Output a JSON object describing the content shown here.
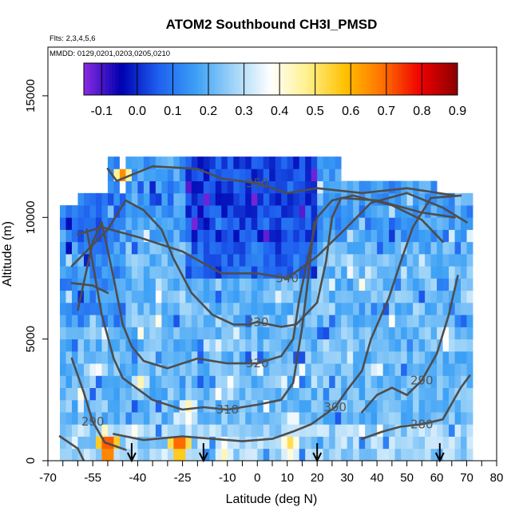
{
  "chart_data": {
    "type": "heatmap",
    "title": "ATOM2 Southbound CH3I_PMSD",
    "subtitle_flights": "Flts: 2,3,4,5,6",
    "subtitle_dates": "MMDD: 0129,0201,0203,0205,0210",
    "xlabel": "Latitude (deg N)",
    "ylabel": "Altitude (m)",
    "xlim": [
      -70,
      80
    ],
    "ylim": [
      0,
      17000
    ],
    "xticks": [
      -70,
      -55,
      -40,
      -25,
      -10,
      0,
      10,
      20,
      30,
      40,
      50,
      60,
      70,
      80
    ],
    "yticks": [
      0,
      5000,
      10000,
      15000
    ],
    "colorbar": {
      "ticks": [
        -0.1,
        0.0,
        0.1,
        0.2,
        0.3,
        0.4,
        0.5,
        0.6,
        0.7,
        0.8,
        0.9
      ],
      "range": [
        -0.15,
        0.9
      ],
      "colors": [
        "#8a2be2",
        "#0000b0",
        "#1e60f0",
        "#3ca0f5",
        "#9fd4f8",
        "#ffffff",
        "#fff08a",
        "#ffc000",
        "#ff7000",
        "#f00000",
        "#8b0000"
      ]
    },
    "arrows_latitude": [
      -42,
      -18,
      20,
      61
    ],
    "contours": [
      {
        "label": "350",
        "points": [
          [
            -50,
            12000
          ],
          [
            -47,
            11500
          ],
          [
            -35,
            12100
          ],
          [
            -20,
            12000
          ],
          [
            -12,
            11600
          ],
          [
            0,
            11400
          ],
          [
            10,
            11000
          ],
          [
            20,
            11200
          ],
          [
            35,
            11000
          ],
          [
            50,
            11200
          ],
          [
            66,
            10900
          ]
        ]
      },
      {
        "label": "340",
        "points": [
          [
            -60,
            9300
          ],
          [
            -52,
            9600
          ],
          [
            -40,
            9200
          ],
          [
            -25,
            8600
          ],
          [
            -12,
            7700
          ],
          [
            0,
            7700
          ],
          [
            10,
            7500
          ],
          [
            20,
            8400
          ],
          [
            30,
            9600
          ],
          [
            38,
            10600
          ],
          [
            50,
            11000
          ],
          [
            62,
            10400
          ],
          [
            70,
            9800
          ]
        ]
      },
      {
        "label": "330",
        "points": [
          [
            -62,
            8000
          ],
          [
            -50,
            9500
          ],
          [
            -44,
            10700
          ],
          [
            -38,
            10300
          ],
          [
            -32,
            9500
          ],
          [
            -28,
            8300
          ],
          [
            -22,
            6900
          ],
          [
            -15,
            6000
          ],
          [
            -8,
            5600
          ],
          [
            -3,
            5600
          ],
          [
            0,
            5700
          ],
          [
            8,
            5500
          ],
          [
            13,
            5600
          ],
          [
            20,
            6500
          ],
          [
            23,
            8200
          ],
          [
            25,
            10000
          ],
          [
            28,
            10800
          ],
          [
            40,
            10700
          ],
          [
            55,
            10200
          ],
          [
            66,
            10000
          ]
        ]
      },
      {
        "label": "320",
        "points": [
          [
            -60,
            6200
          ],
          [
            -55,
            9000
          ],
          [
            -52,
            9800
          ],
          [
            -48,
            7500
          ],
          [
            -45,
            5600
          ],
          [
            -42,
            4700
          ],
          [
            -38,
            4100
          ],
          [
            -30,
            3800
          ],
          [
            -20,
            4200
          ],
          [
            -10,
            4000
          ],
          [
            0,
            4000
          ],
          [
            8,
            4300
          ],
          [
            12,
            5000
          ],
          [
            14,
            6600
          ],
          [
            17,
            8400
          ],
          [
            20,
            10000
          ],
          [
            25,
            10700
          ],
          [
            32,
            10900
          ],
          [
            45,
            10500
          ],
          [
            55,
            9900
          ],
          [
            62,
            9000
          ]
        ]
      },
      {
        "label": "310",
        "points": [
          [
            -57,
            9500
          ],
          [
            -52,
            6000
          ],
          [
            -48,
            4200
          ],
          [
            -45,
            3400
          ],
          [
            -35,
            2500
          ],
          [
            -25,
            2100
          ],
          [
            -18,
            2200
          ],
          [
            -10,
            2100
          ],
          [
            0,
            2300
          ],
          [
            8,
            2500
          ],
          [
            12,
            3200
          ],
          [
            15,
            5500
          ],
          [
            17,
            7500
          ],
          [
            19,
            9800
          ]
        ]
      },
      {
        "label": "300",
        "points": [
          [
            -48,
            1100
          ],
          [
            -38,
            850
          ],
          [
            -25,
            1000
          ],
          [
            -15,
            900
          ],
          [
            -5,
            800
          ],
          [
            5,
            900
          ],
          [
            12,
            1200
          ],
          [
            18,
            1500
          ],
          [
            26,
            2200
          ],
          [
            30,
            2900
          ],
          [
            35,
            3700
          ],
          [
            38,
            5000
          ],
          [
            44,
            6700
          ],
          [
            48,
            8200
          ],
          [
            52,
            9600
          ],
          [
            58,
            10800
          ],
          [
            68,
            10900
          ]
        ]
      },
      {
        "label": "290",
        "points": [
          [
            -62,
            4200
          ],
          [
            -58,
            2800
          ],
          [
            -55,
            1600
          ],
          [
            -51,
            750
          ],
          [
            -44,
            450
          ]
        ]
      },
      {
        "label": "290",
        "points": [
          [
            35,
            2000
          ],
          [
            40,
            2700
          ],
          [
            45,
            3000
          ],
          [
            50,
            2700
          ],
          [
            55,
            3300
          ],
          [
            60,
            4400
          ],
          [
            64,
            6000
          ],
          [
            67,
            7600
          ]
        ]
      },
      {
        "label": "280",
        "points": [
          [
            35,
            900
          ],
          [
            42,
            1200
          ],
          [
            48,
            1400
          ],
          [
            55,
            1500
          ],
          [
            62,
            1700
          ],
          [
            68,
            3000
          ],
          [
            71,
            3500
          ]
        ]
      },
      {
        "label": "",
        "points": [
          [
            -66,
            1000
          ],
          [
            -60,
            500
          ],
          [
            -58,
            0
          ]
        ]
      },
      {
        "label": "",
        "points": [
          [
            -62,
            7300
          ],
          [
            -55,
            7200
          ],
          [
            -50,
            6900
          ]
        ]
      }
    ],
    "grid": false,
    "legend": "colorbar inside plot, top"
  }
}
